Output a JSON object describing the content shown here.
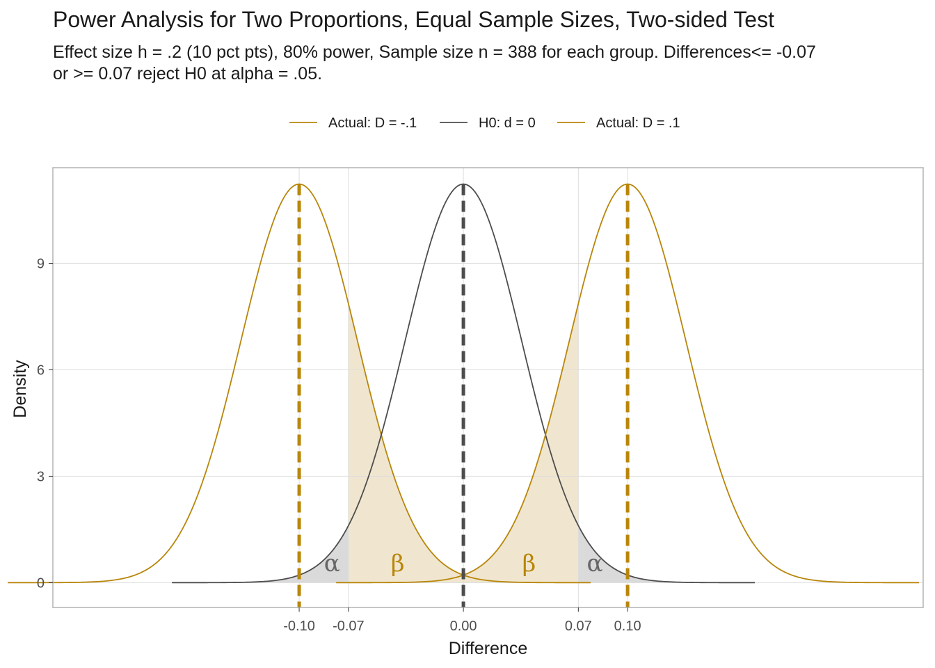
{
  "chart_data": {
    "type": "line",
    "title": "Power Analysis for Two Proportions, Equal Sample Sizes, Two-sided Test",
    "subtitle_lines": [
      "Effect size h = .2 (10 pct pts), 80% power, Sample size n = 388 for each group. Differences<= -0.07",
      "or >= 0.07 reject H0 at alpha = .05."
    ],
    "xlabel": "Difference",
    "ylabel": "Density",
    "xlim": [
      -0.25,
      0.28
    ],
    "ylim": [
      -0.7,
      11.7
    ],
    "x_ticks": [
      -0.1,
      -0.07,
      0.0,
      0.07,
      0.1
    ],
    "x_tick_labels": [
      "-0.10",
      "-0.07",
      "0.00",
      "0.07",
      "0.10"
    ],
    "y_ticks": [
      0,
      3,
      6,
      9
    ],
    "y_tick_labels": [
      "0",
      "3",
      "6",
      "9"
    ],
    "critical_values": [
      -0.07,
      0.07
    ],
    "series": [
      {
        "name": "Actual: D = -.1",
        "mean": -0.1,
        "sd": 0.0355,
        "color": "#B8860B"
      },
      {
        "name": "H0: d = 0",
        "mean": 0.0,
        "sd": 0.0355,
        "color": "#4D4D4D"
      },
      {
        "name": "Actual: D = .1",
        "mean": 0.1,
        "sd": 0.0355,
        "color": "#B8860B"
      }
    ],
    "annotations": [
      {
        "text": "α",
        "x": -0.08,
        "y": 0.5,
        "color": "#666666"
      },
      {
        "text": "β",
        "x": -0.04,
        "y": 0.5,
        "color": "#B8860B"
      },
      {
        "text": "β",
        "x": 0.04,
        "y": 0.5,
        "color": "#B8860B"
      },
      {
        "text": "α",
        "x": 0.08,
        "y": 0.5,
        "color": "#666666"
      }
    ],
    "legend_position": "top",
    "grid": true
  },
  "colors": {
    "actual": "#B8860B",
    "h0": "#4D4D4D",
    "alpha_fill": "#DADADA",
    "beta_fill": "#F0E6CF",
    "grid": "#DDDDDD",
    "panel_border": "#B3B3B3"
  }
}
